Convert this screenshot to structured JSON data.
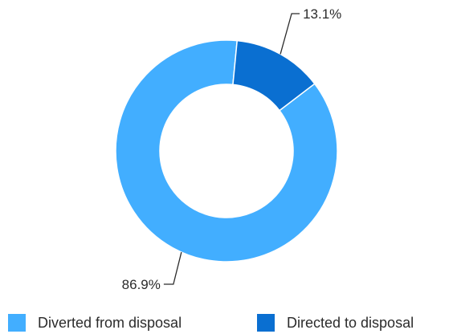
{
  "chart_data": {
    "type": "pie",
    "variant": "donut",
    "title": "",
    "categories": [
      "Diverted from disposal",
      "Directed to disposal"
    ],
    "values": [
      86.9,
      13.1
    ],
    "data_labels": [
      "86.9%",
      "13.1%"
    ],
    "colors": [
      "#42aeff",
      "#0a6fd1"
    ],
    "legend_placement": "bottom"
  }
}
